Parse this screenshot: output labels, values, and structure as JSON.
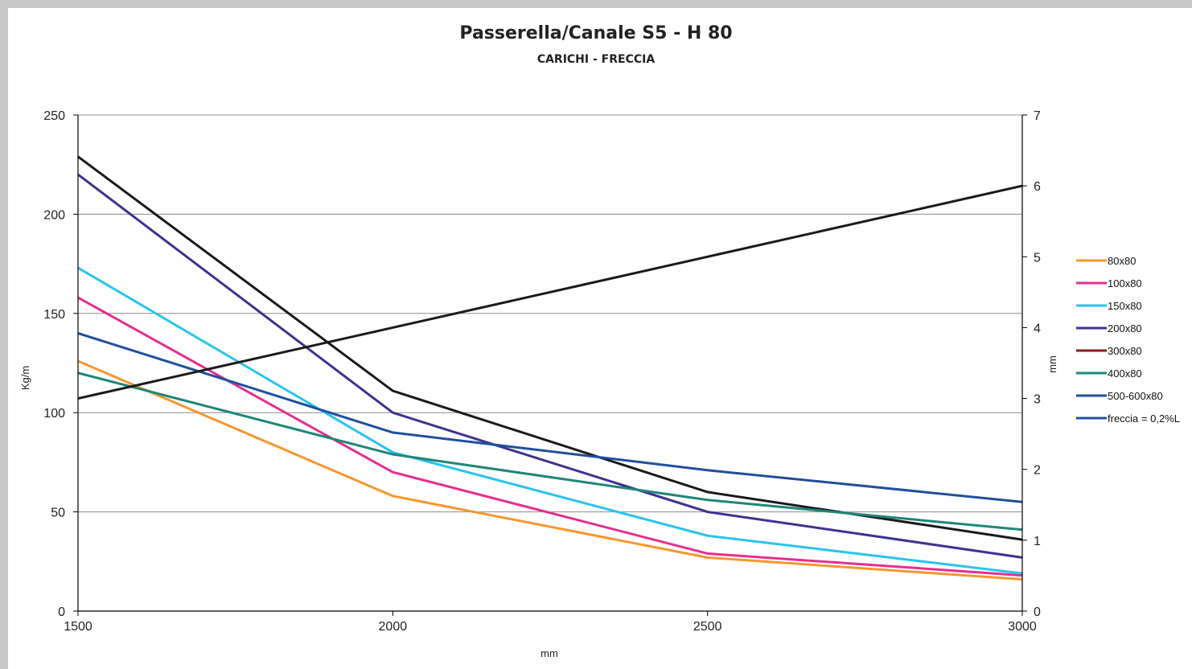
{
  "chart_data": {
    "type": "line",
    "title": "Passerella/Canale S5 - H 80",
    "subtitle": "CARICHI - FRECCIA",
    "xlabel": "mm",
    "ylabel": "Kg/m",
    "y2label": "mm",
    "x": [
      1500,
      2000,
      2500,
      3000
    ],
    "x_ticks": [
      "1500",
      "2000",
      "2500",
      "3000"
    ],
    "xlim": [
      1500,
      3000
    ],
    "ylim": [
      0,
      250
    ],
    "y_ticks": [
      "0",
      "50",
      "100",
      "150",
      "200",
      "250"
    ],
    "y2lim": [
      0,
      7
    ],
    "y2_ticks": [
      "0",
      "1",
      "2",
      "3",
      "4",
      "5",
      "6",
      "7"
    ],
    "grid": "horizontal",
    "legend_position": "right",
    "series": [
      {
        "name": "80x80",
        "color": "#f7962e",
        "axis": "left",
        "values": [
          126,
          58,
          27,
          16
        ]
      },
      {
        "name": "100x80",
        "color": "#e62e8e",
        "axis": "left",
        "values": [
          158,
          70,
          29,
          18
        ]
      },
      {
        "name": "150x80",
        "color": "#29c4f0",
        "axis": "left",
        "values": [
          173,
          80,
          38,
          19
        ]
      },
      {
        "name": "200x80",
        "color": "#3d3391",
        "axis": "left",
        "values": [
          220,
          100,
          50,
          27
        ]
      },
      {
        "name": "300x80",
        "color": "#8b1a1a",
        "axis": "left",
        "values": [
          229,
          111,
          60,
          36
        ]
      },
      {
        "name": "400x80",
        "color": "#1f8677",
        "axis": "left",
        "values": [
          120,
          79,
          56,
          41
        ]
      },
      {
        "name": "500-600x80",
        "color": "#1f4f9e",
        "axis": "left",
        "values": [
          140,
          90,
          71,
          55
        ]
      },
      {
        "name": "freccia = 0,2%L",
        "color": "#1f4f9e",
        "axis": "right",
        "values": [
          3,
          4,
          5,
          6
        ]
      }
    ],
    "drawn_line_colors": {
      "300x80": "#1a1a1a",
      "freccia = 0,2%L": "#1a1a1a"
    }
  }
}
